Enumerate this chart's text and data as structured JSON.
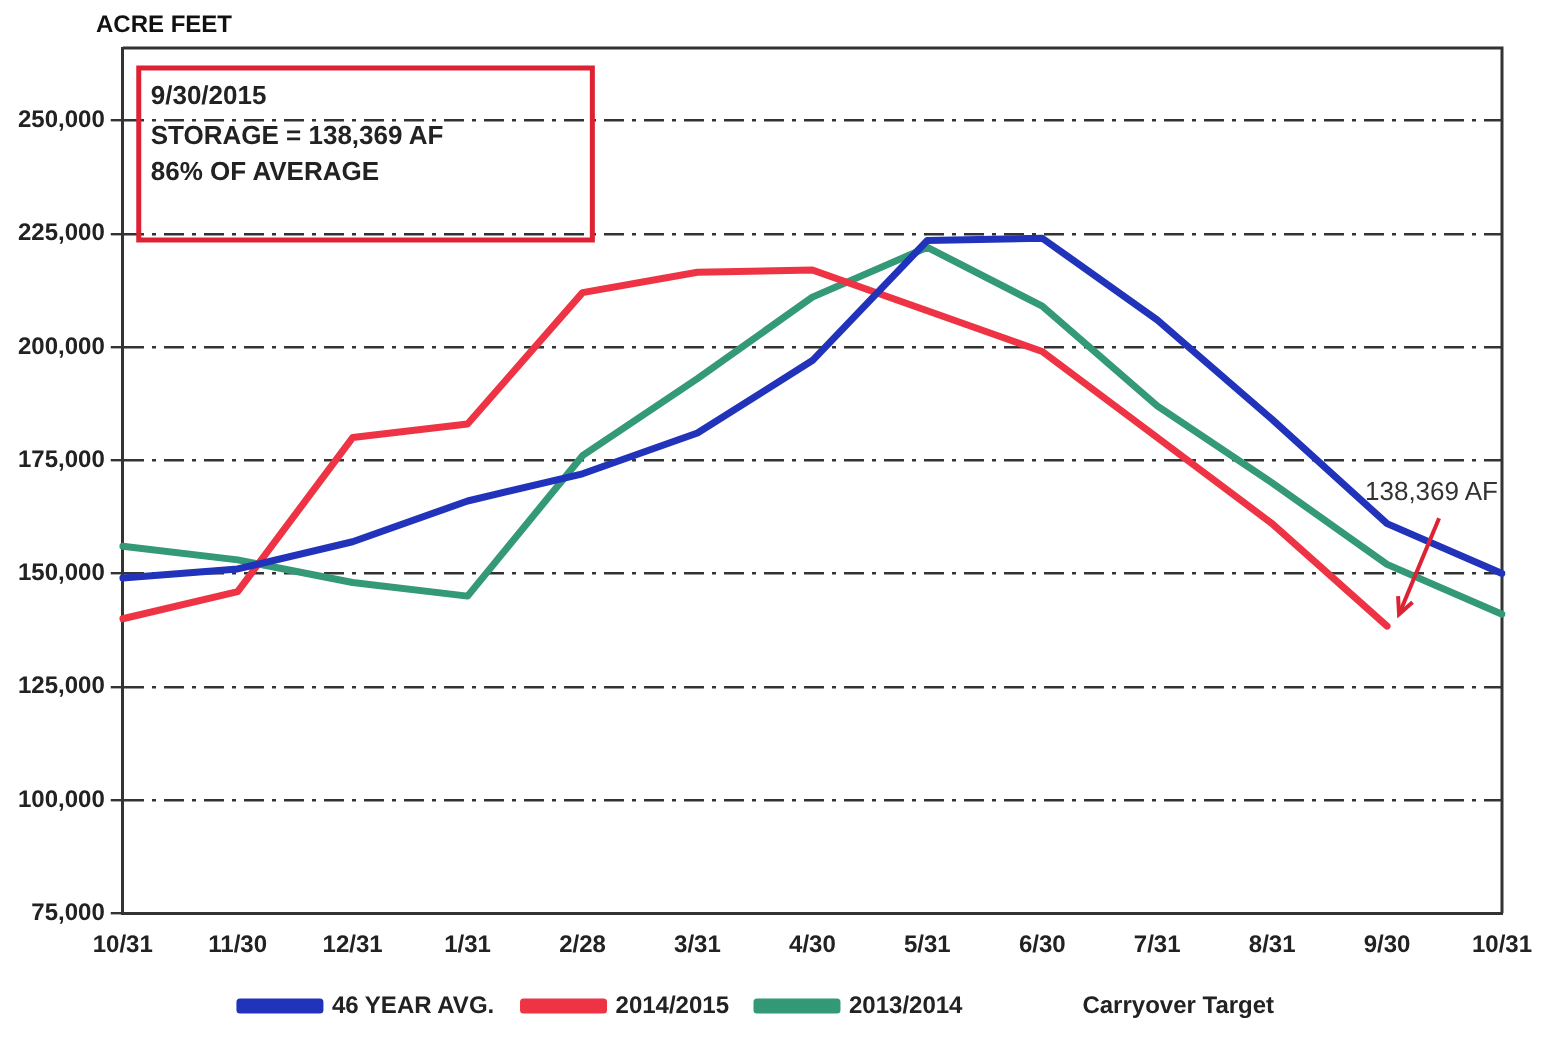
{
  "chart_data": {
    "type": "line",
    "ylabel": "ACRE FEET",
    "categories": [
      "10/31",
      "11/30",
      "12/31",
      "1/31",
      "2/28",
      "3/31",
      "4/30",
      "5/31",
      "6/30",
      "7/31",
      "8/31",
      "9/30",
      "10/31"
    ],
    "series": [
      {
        "name": "46 YEAR AVG.",
        "color": "#2233bb",
        "values": [
          149000,
          151000,
          157000,
          166000,
          172000,
          181000,
          197000,
          223500,
          224000,
          206000,
          184000,
          161000,
          150000
        ]
      },
      {
        "name": "2014/2015",
        "color": "#ee3344",
        "values": [
          140000,
          146000,
          180000,
          183000,
          212000,
          216500,
          217000,
          208000,
          199000,
          180000,
          161000,
          138369,
          null
        ]
      },
      {
        "name": "2013/2014",
        "color": "#339977",
        "values": [
          156000,
          153000,
          148000,
          145000,
          176000,
          193000,
          211000,
          222000,
          209000,
          187000,
          170000,
          152000,
          141000
        ]
      },
      {
        "name": "Carryover Target",
        "values": [
          null,
          null,
          null,
          null,
          null,
          null,
          null,
          null,
          null,
          null,
          null,
          null,
          null
        ]
      }
    ],
    "ylim": [
      75000,
      266000
    ],
    "yticks": [
      {
        "value": 75000,
        "label": "75,000"
      },
      {
        "value": 100000,
        "label": "100,000"
      },
      {
        "value": 125000,
        "label": "125,000"
      },
      {
        "value": 150000,
        "label": "150,000"
      },
      {
        "value": 175000,
        "label": "175,000"
      },
      {
        "value": 200000,
        "label": "200,000"
      },
      {
        "value": 225000,
        "label": "225,000"
      },
      {
        "value": 250000,
        "label": "250,000"
      }
    ],
    "grid": "y",
    "legend": "bottom",
    "marker": "none",
    "line_style": "solid",
    "annotations": [
      "9/30/2015",
      "STORAGE = 138,369 AF",
      "86% OF AVERAGE",
      {
        "text": "138,369 AF",
        "x": "9/30",
        "y": 138369
      }
    ]
  }
}
